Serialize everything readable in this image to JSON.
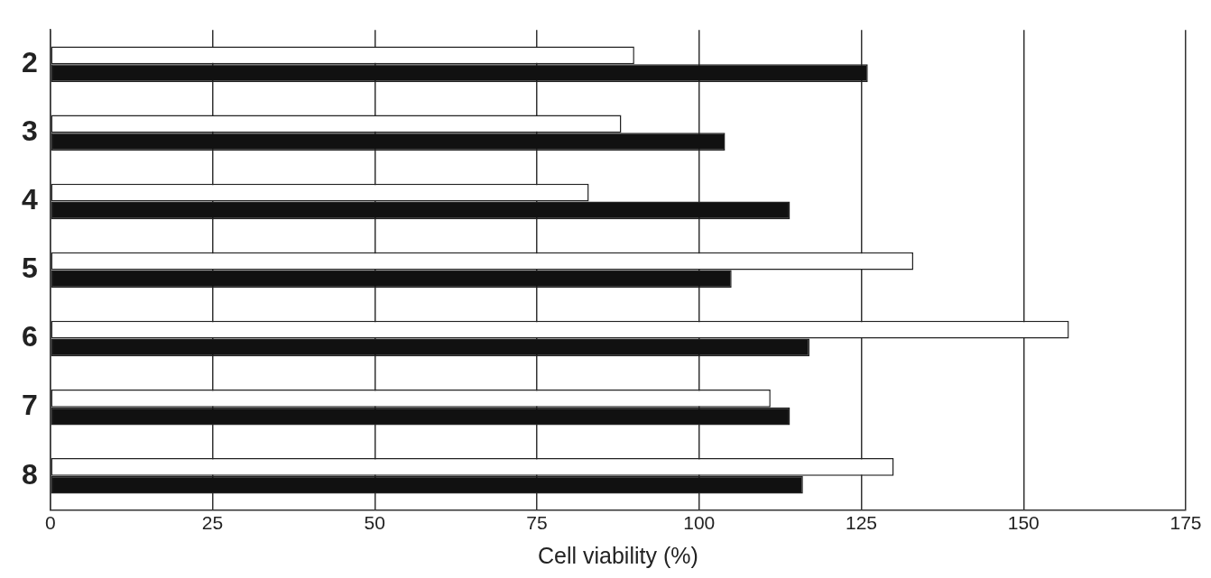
{
  "chart_data": {
    "type": "bar",
    "orientation": "horizontal",
    "xlabel": "Cell viability (%)",
    "categories": [
      "2",
      "3",
      "4",
      "5",
      "6",
      "7",
      "8"
    ],
    "series": [
      {
        "color": "#ffffff",
        "values": [
          90,
          88,
          83,
          133,
          157,
          111,
          130
        ]
      },
      {
        "color": "#111111",
        "values": [
          126,
          104,
          114,
          105,
          117,
          114,
          116
        ]
      }
    ],
    "xlim": [
      0,
      175
    ],
    "xticks": [
      0,
      25,
      50,
      75,
      100,
      125,
      150,
      175
    ],
    "grid": "x"
  }
}
